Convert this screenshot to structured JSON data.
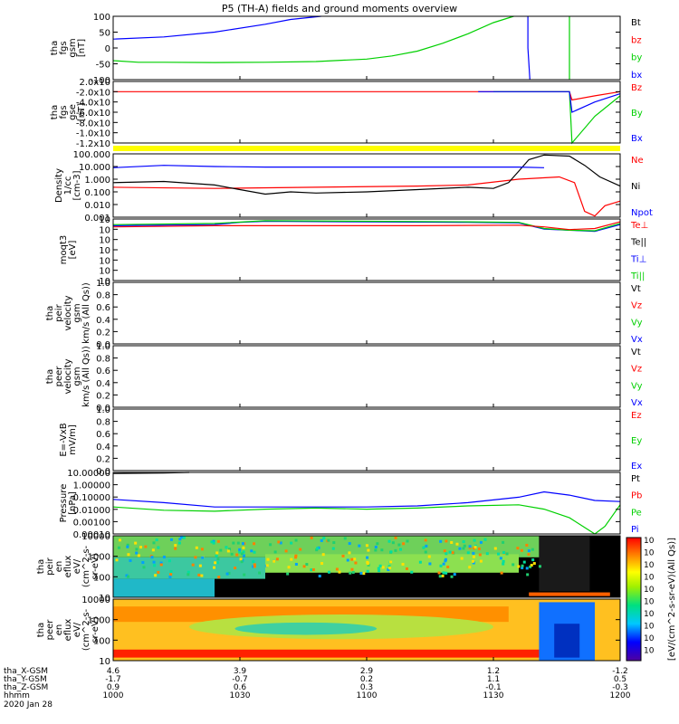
{
  "title": "P5 (TH-A) fields and ground moments overview",
  "colors": {
    "black": "#000000",
    "red": "#ff0000",
    "green": "#00d000",
    "blue": "#0000ff",
    "yellow": "#ffff00"
  },
  "chart_data": [
    {
      "type": "line",
      "ylabel": [
        "tha",
        "fgs",
        "gsm",
        "[nT]"
      ],
      "yticks": [
        "100",
        "50",
        "0",
        "-50",
        "-100"
      ],
      "ylim": [
        -100,
        100
      ],
      "legend": [
        {
          "name": "Bt",
          "color": "#000000"
        },
        {
          "name": "bz",
          "color": "#ff0000"
        },
        {
          "name": "by",
          "color": "#00d000"
        },
        {
          "name": "bx",
          "color": "#0000ff"
        }
      ],
      "series": [
        {
          "name": "bx",
          "color": "#0000ff",
          "x": [
            0,
            0.1,
            0.2,
            0.3,
            0.35,
            0.41
          ],
          "y": [
            28,
            35,
            50,
            75,
            90,
            100
          ]
        },
        {
          "name": "bx",
          "color": "#0000ff",
          "x": [
            0.818,
            0.818,
            0.822
          ],
          "y": [
            100,
            0,
            -100
          ]
        },
        {
          "name": "by",
          "color": "#00d000",
          "x": [
            0,
            0.05,
            0.1,
            0.2,
            0.3,
            0.4,
            0.5,
            0.55,
            0.6,
            0.65,
            0.7,
            0.75,
            0.79
          ],
          "y": [
            -40,
            -45,
            -45,
            -46,
            -45,
            -43,
            -35,
            -25,
            -10,
            15,
            45,
            80,
            100
          ]
        },
        {
          "name": "by",
          "color": "#00d000",
          "x": [
            0.9,
            0.9
          ],
          "y": [
            100,
            -100
          ]
        }
      ]
    },
    {
      "type": "line",
      "ylabel": [
        "tha",
        "fgs",
        "gse",
        "[nT]"
      ],
      "yticks": [
        "2.0x10",
        "-2.0x10",
        "-4.0x10",
        "-6.0x10",
        "-8.0x10",
        "-1.0x10",
        "-1.2x10"
      ],
      "ylim": [
        -1.25,
        0.25
      ],
      "legend": [
        {
          "name": "Bz",
          "color": "#ff0000"
        },
        {
          "name": "By",
          "color": "#00d000"
        },
        {
          "name": "Bx",
          "color": "#0000ff"
        }
      ],
      "series": [
        {
          "name": "Bz",
          "color": "#ff0000",
          "x": [
            0,
            0.5,
            0.9,
            0.905,
            0.95,
            1.0
          ],
          "y": [
            0,
            0,
            0,
            -0.2,
            -0.1,
            0
          ]
        },
        {
          "name": "By",
          "color": "#00d000",
          "x": [
            0.75,
            0.9,
            0.905,
            0.95,
            1.0
          ],
          "y": [
            0,
            0,
            -1.25,
            -0.6,
            -0.1
          ]
        },
        {
          "name": "Bx",
          "color": "#0000ff",
          "x": [
            0.72,
            0.9,
            0.905,
            0.95,
            1.0
          ],
          "y": [
            0,
            0,
            -0.5,
            -0.25,
            -0.05
          ]
        }
      ]
    },
    {
      "type": "line",
      "ylabel": [
        "Density",
        "1/cc",
        "[cm-3]"
      ],
      "yticks": [
        "100.000",
        "10.000",
        "1.000",
        "0.100",
        "0.010",
        "0.001"
      ],
      "ylim": [
        -3,
        2.5
      ],
      "yscale": "log",
      "legend": [
        {
          "name": "Ne",
          "color": "#ff0000"
        },
        {
          "name": "Ni",
          "color": "#000000"
        },
        {
          "name": "Npot",
          "color": "#0000ff"
        }
      ],
      "series": [
        {
          "name": "Ne",
          "color": "#ff0000",
          "x": [
            0,
            0.2,
            0.4,
            0.6,
            0.7,
            0.8,
            0.88,
            0.91,
            0.93,
            0.95,
            0.97,
            1.0
          ],
          "y": [
            -0.4,
            -0.5,
            -0.4,
            -0.3,
            -0.2,
            0.3,
            0.5,
            0,
            -2.5,
            -2.9,
            -2.0,
            -1.6
          ]
        },
        {
          "name": "Ni",
          "color": "#000000",
          "x": [
            0,
            0.1,
            0.2,
            0.25,
            0.3,
            0.35,
            0.4,
            0.5,
            0.6,
            0.7,
            0.75,
            0.78,
            0.8,
            0.82,
            0.85,
            0.9,
            0.93,
            0.96,
            1.0
          ],
          "y": [
            0,
            0.1,
            -0.2,
            -0.6,
            -1.0,
            -0.8,
            -0.9,
            -0.8,
            -0.6,
            -0.4,
            -0.5,
            0,
            1.0,
            2.0,
            2.4,
            2.3,
            1.5,
            0.5,
            -0.3
          ]
        },
        {
          "name": "Npot",
          "color": "#0000ff",
          "x": [
            0,
            0.1,
            0.2,
            0.3,
            0.5,
            0.7,
            0.8,
            0.85
          ],
          "y": [
            1.3,
            1.5,
            1.4,
            1.35,
            1.35,
            1.35,
            1.35,
            1.3
          ]
        }
      ]
    },
    {
      "type": "line",
      "ylabel": [
        "moqt3",
        "[eV]"
      ],
      "yticks": [
        "10",
        "10",
        "10",
        "10",
        "10",
        "10",
        "10"
      ],
      "ylim": [
        -7,
        4
      ],
      "yscale": "log",
      "legend": [
        {
          "name": "Te⊥",
          "color": "#ff0000"
        },
        {
          "name": "Te||",
          "color": "#000000"
        },
        {
          "name": "Ti⊥",
          "color": "#0000ff"
        },
        {
          "name": "Ti||",
          "color": "#00d000"
        }
      ],
      "series": [
        {
          "name": "Ti⊥",
          "color": "#0000ff",
          "x": [
            0,
            0.2,
            0.25,
            0.3,
            0.5,
            0.7,
            0.8,
            0.85,
            0.9,
            0.95,
            1.0
          ],
          "y": [
            2.8,
            3.0,
            3.4,
            3.6,
            3.5,
            3.4,
            3.3,
            2.2,
            2.0,
            1.8,
            3.0
          ]
        },
        {
          "name": "Ti||",
          "color": "#00d000",
          "x": [
            0,
            0.2,
            0.3,
            0.5,
            0.7,
            0.8,
            0.85,
            0.9,
            0.95,
            1.0
          ],
          "y": [
            3.0,
            3.2,
            3.7,
            3.6,
            3.5,
            3.4,
            2.3,
            2.0,
            1.9,
            3.2
          ]
        },
        {
          "name": "Te⊥",
          "color": "#ff0000",
          "x": [
            0,
            0.2,
            0.4,
            0.6,
            0.8,
            0.85,
            0.9,
            0.95,
            1.0
          ],
          "y": [
            2.6,
            2.8,
            2.8,
            2.8,
            2.9,
            2.6,
            2.1,
            2.3,
            3.5
          ]
        }
      ]
    },
    {
      "type": "line",
      "ylabel": [
        "tha",
        "peir",
        "velocity",
        "gsm",
        "km/s (All Qs))"
      ],
      "yticks": [
        "1.0",
        "0.8",
        "0.6",
        "0.4",
        "0.2",
        "0.0"
      ],
      "ylim": [
        0,
        1
      ],
      "legend": [
        {
          "name": "Vt",
          "color": "#000000"
        },
        {
          "name": "Vz",
          "color": "#ff0000"
        },
        {
          "name": "Vy",
          "color": "#00d000"
        },
        {
          "name": "Vx",
          "color": "#0000ff"
        }
      ],
      "series": []
    },
    {
      "type": "line",
      "ylabel": [
        "tha",
        "peer",
        "velocity",
        "gsm",
        "km/s (All Qs))"
      ],
      "yticks": [
        "1.0",
        "0.8",
        "0.6",
        "0.4",
        "0.2",
        "0.0"
      ],
      "ylim": [
        0,
        1
      ],
      "legend": [
        {
          "name": "Vt",
          "color": "#000000"
        },
        {
          "name": "Vz",
          "color": "#ff0000"
        },
        {
          "name": "Vy",
          "color": "#00d000"
        },
        {
          "name": "Vx",
          "color": "#0000ff"
        }
      ],
      "series": []
    },
    {
      "type": "line",
      "ylabel": [
        "E=-VxB",
        "mV/m]"
      ],
      "yticks": [
        "1.0",
        "0.8",
        "0.6",
        "0.4",
        "0.2",
        "0.0"
      ],
      "ylim": [
        0,
        1
      ],
      "legend": [
        {
          "name": "Ez",
          "color": "#ff0000"
        },
        {
          "name": "Ey",
          "color": "#00d000"
        },
        {
          "name": "Ex",
          "color": "#0000ff"
        }
      ],
      "series": []
    },
    {
      "type": "line",
      "ylabel": [
        "Pressure",
        "[nPa]"
      ],
      "yticks": [
        "10.00000",
        "1.00000",
        "0.10000",
        "0.01000",
        "0.00100",
        "0.00010"
      ],
      "ylim": [
        -4.5,
        1.2
      ],
      "yscale": "log",
      "legend": [
        {
          "name": "Pt",
          "color": "#000000"
        },
        {
          "name": "Pb",
          "color": "#ff0000"
        },
        {
          "name": "Pe",
          "color": "#00d000"
        },
        {
          "name": "Pi",
          "color": "#0000ff"
        }
      ],
      "series": [
        {
          "name": "Pt",
          "color": "#000000",
          "x": [
            0,
            0.1,
            0.15
          ],
          "y": [
            1.1,
            1.15,
            1.2
          ]
        },
        {
          "name": "Pi",
          "color": "#0000ff",
          "x": [
            0,
            0.1,
            0.2,
            0.3,
            0.5,
            0.6,
            0.7,
            0.8,
            0.85,
            0.9,
            0.95,
            1.0
          ],
          "y": [
            -1.3,
            -1.6,
            -2.0,
            -2.0,
            -2.0,
            -1.9,
            -1.6,
            -1.1,
            -0.6,
            -0.9,
            -1.4,
            -1.5
          ]
        },
        {
          "name": "Pe",
          "color": "#00d000",
          "x": [
            0,
            0.1,
            0.2,
            0.3,
            0.4,
            0.5,
            0.6,
            0.7,
            0.8,
            0.85,
            0.9,
            0.95,
            0.97,
            1.0
          ],
          "y": [
            -2.0,
            -2.3,
            -2.4,
            -2.2,
            -2.1,
            -2.2,
            -2.1,
            -1.9,
            -1.8,
            -2.2,
            -3.0,
            -4.5,
            -3.8,
            -1.8
          ]
        }
      ]
    },
    {
      "type": "heatmap",
      "ylabel": [
        "tha",
        "peir",
        "en",
        "eflux",
        "eV/",
        "(cm^2-s-",
        "sr-eV)"
      ],
      "yticks": [
        "10000",
        "1000",
        "100",
        "10"
      ],
      "ylim": [
        10,
        10000
      ],
      "yscale": "log"
    },
    {
      "type": "heatmap",
      "ylabel": [
        "tha",
        "peer",
        "en",
        "eflux",
        "eV/",
        "(cm^2-s-",
        "sr-eV)"
      ],
      "yticks": [
        "10000",
        "1000",
        "100",
        "10"
      ],
      "ylim": [
        10,
        10000
      ],
      "yscale": "log"
    }
  ],
  "colorbar": {
    "label": "[eV/(cm^2-s-sr-eV)(All Qs)]",
    "ticks": [
      "10",
      "10",
      "10",
      "10",
      "10",
      "10",
      "10",
      "10",
      "10",
      "10"
    ]
  },
  "axis": {
    "rows": [
      {
        "label": "tha_X-GSM",
        "values": [
          "4.6",
          "3.9",
          "2.9",
          "1.2",
          "-1.2"
        ]
      },
      {
        "label": "tha_Y-GSM",
        "values": [
          "-1.7",
          "-0.7",
          "0.2",
          "1.1",
          "0.5"
        ]
      },
      {
        "label": "tha_Z-GSM",
        "values": [
          "0.9",
          "0.6",
          "0.3",
          "-0.1",
          "-0.3"
        ]
      },
      {
        "label": "hhmm",
        "values": [
          "1000",
          "1030",
          "1100",
          "1130",
          "1200"
        ]
      }
    ],
    "date": "2020 Jan 28"
  }
}
